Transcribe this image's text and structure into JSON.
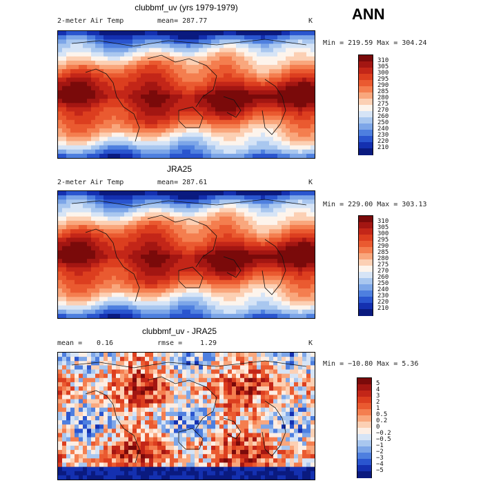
{
  "season": "ANN",
  "panels": [
    {
      "title": "clubbmf_uv (yrs 1979-1979)",
      "variable": "2-meter Air Temp",
      "mean_text": "mean= 287.77",
      "units": "K",
      "minmax": "Min = 219.59 Max = 304.24",
      "scale": "abs",
      "colorbar_labels": [
        "310",
        "305",
        "300",
        "295",
        "290",
        "285",
        "280",
        "275",
        "270",
        "260",
        "250",
        "240",
        "230",
        "220",
        "210"
      ],
      "colors": [
        "#7a0a0a",
        "#a31612",
        "#c32618",
        "#dc3e1f",
        "#ea5a30",
        "#f47e4f",
        "#f9a77d",
        "#fcd0b4",
        "#fdf4ec",
        "#d6e4f6",
        "#a9c7ef",
        "#7da6e8",
        "#4e7fdf",
        "#2a55cf",
        "#1430b0",
        "#0a1a7f"
      ]
    },
    {
      "title": "JRA25",
      "variable": "2-meter Air Temp",
      "mean_text": "mean= 287.61",
      "units": "K",
      "minmax": "Min = 229.00 Max = 303.13",
      "scale": "abs",
      "colorbar_labels": [
        "310",
        "305",
        "300",
        "295",
        "290",
        "285",
        "280",
        "275",
        "270",
        "260",
        "250",
        "240",
        "230",
        "220",
        "210"
      ],
      "colors": [
        "#7a0a0a",
        "#a31612",
        "#c32618",
        "#dc3e1f",
        "#ea5a30",
        "#f47e4f",
        "#f9a77d",
        "#fcd0b4",
        "#fdf4ec",
        "#d6e4f6",
        "#a9c7ef",
        "#7da6e8",
        "#4e7fdf",
        "#2a55cf",
        "#1430b0",
        "#0a1a7f"
      ]
    },
    {
      "title": "clubbmf_uv - JRA25",
      "variable": "mean =",
      "mean_value": "0.16",
      "rmse_text": "rmse =",
      "rmse_value": "1.29",
      "units": "K",
      "minmax": "Min = −10.80 Max =    5.36",
      "scale": "diff",
      "colorbar_labels": [
        "5",
        "4",
        "3",
        "2",
        "1",
        "0.5",
        "0.2",
        "0",
        "−0.2",
        "−0.5",
        "−1",
        "−2",
        "−3",
        "−4",
        "−5"
      ],
      "colors": [
        "#7a0a0a",
        "#a31612",
        "#c32618",
        "#dc3e1f",
        "#ea5a30",
        "#f47e4f",
        "#f9a77d",
        "#fcd0b4",
        "#fdeee4",
        "#d6e4f6",
        "#a9c7ef",
        "#7da6e8",
        "#4e7fdf",
        "#2a55cf",
        "#1430b0",
        "#0a1a7f"
      ]
    }
  ]
}
